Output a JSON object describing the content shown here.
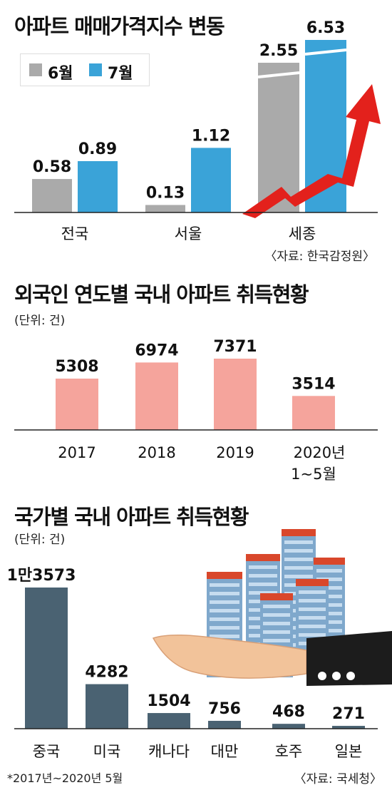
{
  "chart_data": [
    {
      "type": "bar",
      "title": "아파트 매매가격지수 변동",
      "categories": [
        "전국",
        "서울",
        "세종"
      ],
      "series": [
        {
          "name": "6월",
          "values": [
            0.58,
            0.13,
            2.55
          ],
          "color": "#aaaaaa"
        },
        {
          "name": "7월",
          "values": [
            0.89,
            1.12,
            6.53
          ],
          "color": "#3aa3d8"
        }
      ],
      "value_labels": [
        [
          "0.58",
          "0.13",
          "2.55"
        ],
        [
          "0.89",
          "1.12",
          "6.53"
        ]
      ],
      "legend": "top-left",
      "source": "〈자료: 한국감정원〉",
      "decoration": "red-up-arrow"
    },
    {
      "type": "bar",
      "title": "외국인 연도별 국내 아파트 취득현황",
      "unit": "(단위: 건)",
      "categories": [
        "2017",
        "2018",
        "2019",
        "2020년 1~5월"
      ],
      "category_lines": [
        [
          "2017"
        ],
        [
          "2018"
        ],
        [
          "2019"
        ],
        [
          "2020년",
          "1~5월"
        ]
      ],
      "values": [
        5308,
        6974,
        7371,
        3514
      ],
      "value_labels": [
        "5308",
        "6974",
        "7371",
        "3514"
      ],
      "color": "#f5a49c"
    },
    {
      "type": "bar",
      "title": "국가별 국내 아파트 취득현황",
      "unit": "(단위: 건)",
      "categories": [
        "중국",
        "미국",
        "캐나다",
        "대만",
        "호주",
        "일본"
      ],
      "values": [
        13573,
        4282,
        1504,
        756,
        468,
        271
      ],
      "value_labels": [
        "1만3573",
        "4282",
        "1504",
        "756",
        "468",
        "271"
      ],
      "color": "#4a6272",
      "footnote": "*2017년~2020년 5월",
      "source": "〈자료: 국세청〉",
      "decoration": "hand-holding-apartments-illustration"
    }
  ]
}
